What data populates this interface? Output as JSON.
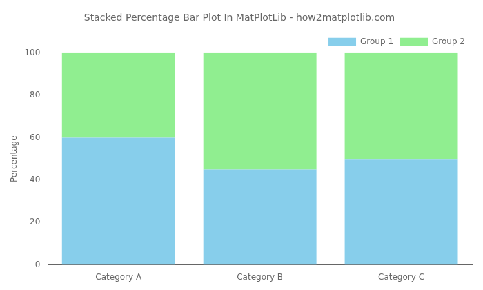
{
  "chart_data": {
    "type": "bar",
    "title": "Stacked Percentage Bar Plot In MatPlotLib - how2matplotlib.com",
    "ylabel": "Percentage",
    "categories": [
      "Category A",
      "Category B",
      "Category C"
    ],
    "series": [
      {
        "name": "Group 1",
        "color": "#87CEEB",
        "values": [
          60,
          45,
          50
        ]
      },
      {
        "name": "Group 2",
        "color": "#90EE90",
        "values": [
          40,
          55,
          50
        ]
      }
    ],
    "stacked": true,
    "ylim": [
      0,
      100
    ],
    "yticks": [
      0,
      20,
      40,
      60,
      80,
      100
    ],
    "grid": false,
    "legend": "upper right"
  }
}
